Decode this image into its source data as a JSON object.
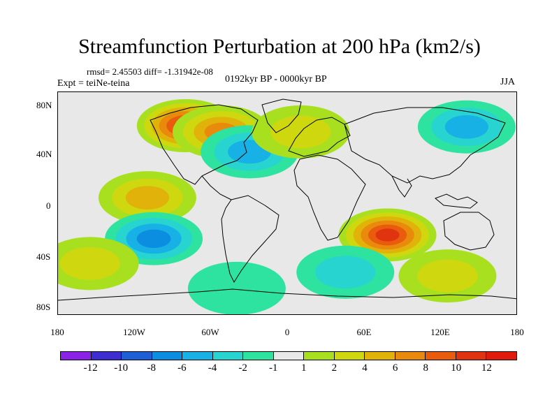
{
  "title": "Streamfunction Perturbation at 200 hPa (km2/s)",
  "stats": "rmsd= 2.45503 diff= -1.31942e-08",
  "experiment": "Expt = teiNe-teina",
  "period": "0192kyr BP - 0000kyr BP",
  "season": "JJA",
  "chart_data": {
    "type": "heatmap",
    "projection": "cylindrical-equidistant",
    "variable": "Streamfunction Perturbation at 200 hPa",
    "units": "km2/s",
    "lon_range": [
      -180,
      180
    ],
    "lat_range": [
      -90,
      90
    ],
    "lat_tick_labels": [
      "80N",
      "40N",
      "0",
      "40S",
      "80S"
    ],
    "lon_tick_labels": [
      "180",
      "120W",
      "60W",
      "0",
      "60E",
      "120E",
      "180"
    ],
    "colorbar": {
      "labels": [
        "-12",
        "-10",
        "-8",
        "-6",
        "-4",
        "-2",
        "-1",
        "1",
        "2",
        "4",
        "6",
        "8",
        "10",
        "12"
      ],
      "colors": [
        "#8a22e8",
        "#3e2dd0",
        "#1f5fd6",
        "#0b8de0",
        "#17b1e6",
        "#27d4d0",
        "#2ee3a0",
        "#e8e8e8",
        "#a8e020",
        "#cfd80e",
        "#e0b20a",
        "#ea8a0c",
        "#e95c0d",
        "#e0330f",
        "#e01b0c"
      ]
    },
    "anomaly_centers": [
      {
        "lon": -80,
        "lat": 63,
        "value": 10
      },
      {
        "lon": -52,
        "lat": 58,
        "value": 6
      },
      {
        "lon": -110,
        "lat": 5,
        "value": 4
      },
      {
        "lon": -105,
        "lat": -28,
        "value": -6
      },
      {
        "lon": 78,
        "lat": -25,
        "value": 10
      },
      {
        "lon": 140,
        "lat": 62,
        "value": -4
      },
      {
        "lon": -30,
        "lat": 42,
        "value": -4
      },
      {
        "lon": 10,
        "lat": 58,
        "value": 2
      },
      {
        "lon": 45,
        "lat": -55,
        "value": -2
      },
      {
        "lon": -155,
        "lat": -48,
        "value": 3
      },
      {
        "lon": 125,
        "lat": -58,
        "value": 2
      },
      {
        "lon": -40,
        "lat": -68,
        "value": -1
      }
    ]
  }
}
